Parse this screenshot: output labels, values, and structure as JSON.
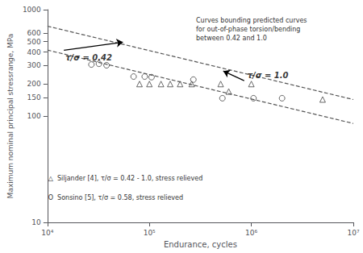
{
  "chart_data": {
    "type": "scatter",
    "log": true,
    "grid": false,
    "xlabel": "Endurance, cycles",
    "ylabel": "Maximum nominal principal stressrange, MPa",
    "xlim": [
      10000,
      10000000
    ],
    "xticks": [
      {
        "value": 10000,
        "label": "10⁴"
      },
      {
        "value": 100000,
        "label": "10⁵"
      },
      {
        "value": 1000000,
        "label": "10⁶"
      },
      {
        "value": 10000000,
        "label": "10⁷"
      }
    ],
    "ylim": [
      10,
      1000
    ],
    "yticks": [
      10,
      100,
      150,
      200,
      300,
      400,
      500,
      600,
      1000
    ],
    "series": [
      {
        "type": "line",
        "line_style": "dashed",
        "color": "#555555",
        "x": [
          10000,
          10000000
        ],
        "values": [
          699.84,
          142.89
        ]
      },
      {
        "type": "line",
        "line_style": "dashed",
        "color": "#555555",
        "x": [
          10000,
          10000000
        ],
        "values": [
          416.87,
          85.114
        ]
      },
      {
        "type": "scatter",
        "marker": "triangle",
        "color": "#444444",
        "x": [
          80000,
          100000,
          130000,
          160000,
          200000,
          260000,
          500000,
          600000,
          1000000,
          5000000
        ],
        "values": [
          200,
          200,
          200,
          200,
          200,
          200,
          200,
          170,
          200,
          143
        ]
      },
      {
        "type": "scatter",
        "marker": "circle",
        "color": "#444444",
        "x": [
          27000,
          32000,
          38000,
          70000,
          90000,
          105000,
          270000,
          520000,
          1050000,
          2000000
        ],
        "values": [
          305,
          310,
          300,
          235,
          235,
          232,
          220,
          147,
          147,
          147
        ]
      }
    ],
    "annotations": [
      {
        "text": "τ/σ = 0.42",
        "x": 14500,
        "y": 415,
        "arrow_x": 55000,
        "arrow_y": 495
      },
      {
        "text": "τ/σ = 1.0",
        "x": 850000,
        "y": 215,
        "arrow_x": 530000,
        "arrow_y": 265
      }
    ],
    "notes": [
      "Curves bounding predicted curves\nfor out-of-phase torsion/bending\nbetween 0.42 and 1.0",
      "△  Siljander [4], τ/σ = 0.42 - 1.0, stress relieved",
      "O  Sonsino [5], τ/σ = 0.58, stress relieved"
    ]
  }
}
